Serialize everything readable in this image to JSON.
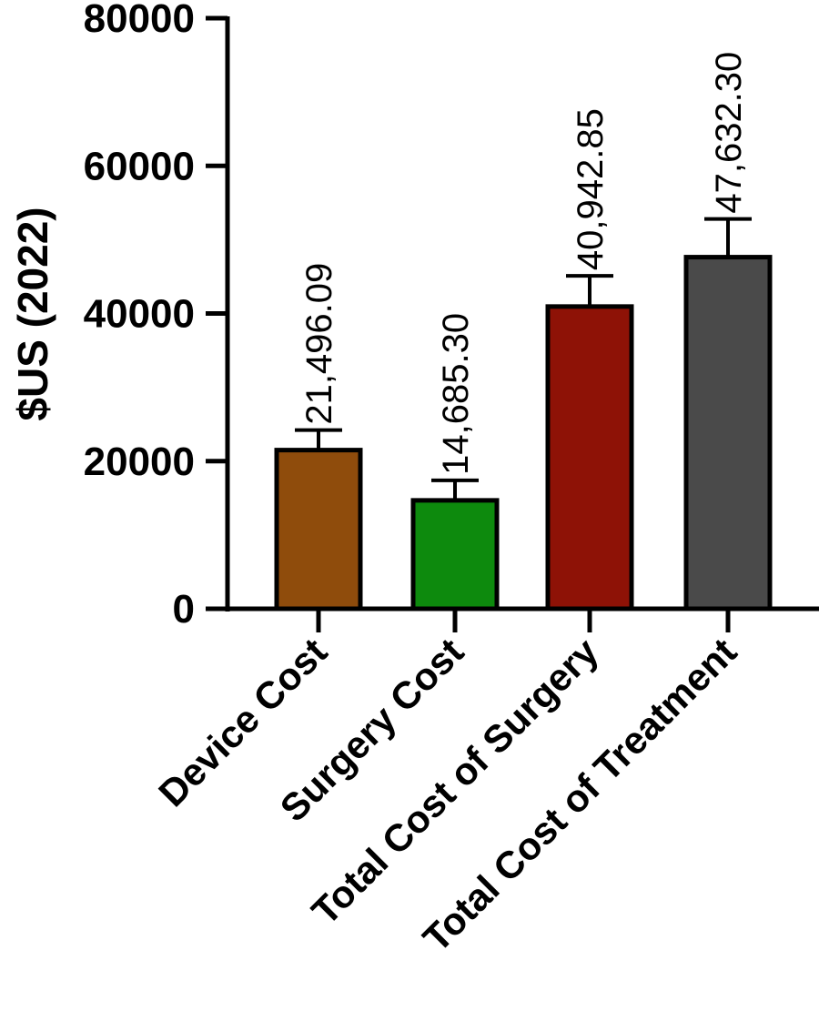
{
  "chart_data": {
    "type": "bar",
    "title": "",
    "xlabel": "",
    "ylabel": "$US (2022)",
    "ylim": [
      0,
      80000
    ],
    "yticks": [
      0,
      20000,
      40000,
      60000,
      80000
    ],
    "grid": false,
    "legend": "none",
    "categories": [
      "Device Cost",
      "Surgery Cost",
      "Total Cost of Surgery",
      "Total Cost of Treatment"
    ],
    "values": [
      21496.09,
      14685.3,
      40942.85,
      47632.3
    ],
    "error_upper": [
      24200,
      17400,
      45100,
      52800
    ],
    "data_labels": [
      "21,496.09",
      "14,685.30",
      "40,942.85",
      "47,632.30"
    ],
    "colors": [
      "#8f4c0c",
      "#0d8a0d",
      "#8e1206",
      "#4a4a4a"
    ]
  }
}
